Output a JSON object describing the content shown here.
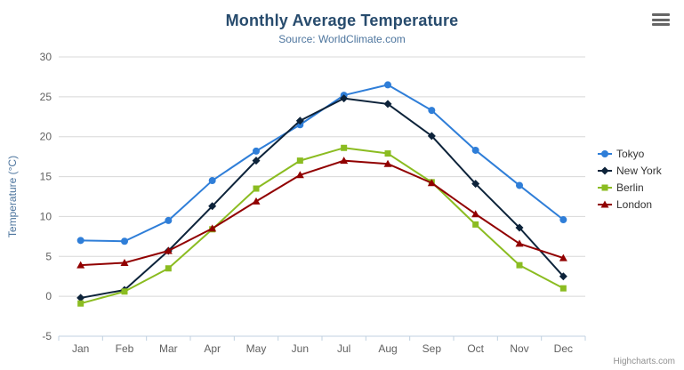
{
  "header": {
    "title": "Monthly Average Temperature",
    "subtitle": "Source: WorldClimate.com"
  },
  "credits": "Highcharts.com",
  "chart_data": {
    "type": "line",
    "title": "Monthly Average Temperature",
    "subtitle": "Source: WorldClimate.com",
    "xlabel": "",
    "ylabel": "Temperature (°C)",
    "ylim": [
      -5,
      30
    ],
    "ytick_step": 5,
    "grid": true,
    "legend_position": "right",
    "categories": [
      "Jan",
      "Feb",
      "Mar",
      "Apr",
      "May",
      "Jun",
      "Jul",
      "Aug",
      "Sep",
      "Oct",
      "Nov",
      "Dec"
    ],
    "series": [
      {
        "name": "Tokyo",
        "color": "#2f7ed8",
        "marker": "circle",
        "values": [
          7.0,
          6.9,
          9.5,
          14.5,
          18.2,
          21.5,
          25.2,
          26.5,
          23.3,
          18.3,
          13.9,
          9.6
        ]
      },
      {
        "name": "New York",
        "color": "#0d233a",
        "marker": "diamond",
        "values": [
          -0.2,
          0.8,
          5.7,
          11.3,
          17.0,
          22.0,
          24.8,
          24.1,
          20.1,
          14.1,
          8.6,
          2.5
        ]
      },
      {
        "name": "Berlin",
        "color": "#8bbc21",
        "marker": "square",
        "values": [
          -0.9,
          0.6,
          3.5,
          8.4,
          13.5,
          17.0,
          18.6,
          17.9,
          14.3,
          9.0,
          3.9,
          1.0
        ]
      },
      {
        "name": "London",
        "color": "#910000",
        "marker": "triangle",
        "values": [
          3.9,
          4.2,
          5.7,
          8.5,
          11.9,
          15.2,
          17.0,
          16.6,
          14.2,
          10.3,
          6.6,
          4.8
        ]
      }
    ],
    "axis_colors": {
      "grid_line": "#d8d8d8",
      "axis_line": "#c0d0e0",
      "tick": "#c0d0e0",
      "label": "#606060",
      "axis_title": "#4d759e"
    }
  }
}
